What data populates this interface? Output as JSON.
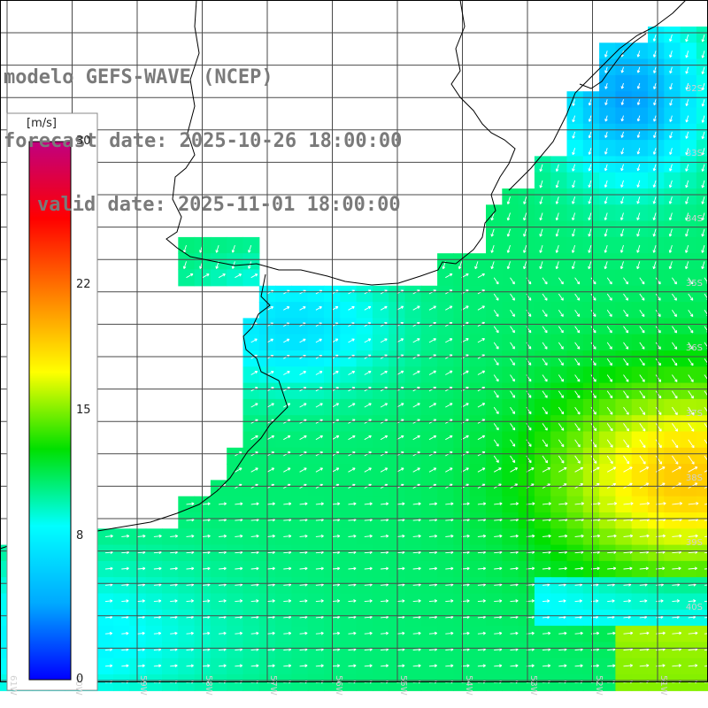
{
  "title": {
    "model": "modelo GEFS-WAVE (NCEP)",
    "forecast": "forecast date: 2025-10-26 18:00:00",
    "valid": "valid date: 2025-11-01 18:00:00"
  },
  "colorbar": {
    "unit": "[m/s]",
    "min": 0,
    "max": 30,
    "ticks": [
      "30",
      "22",
      "15",
      "8",
      "0"
    ],
    "tick_values": [
      30,
      22,
      15,
      8,
      0
    ],
    "colors": [
      "#0000ff",
      "#00aaff",
      "#00ffff",
      "#00e000",
      "#ffff00",
      "#ff8000",
      "#ff0000",
      "#c00080"
    ]
  },
  "map": {
    "variable": "wind speed and direction",
    "lat_labels": [
      "32S",
      "33S",
      "34S",
      "35S",
      "36S",
      "37S",
      "38S",
      "39S",
      "40S"
    ],
    "lon_labels": [
      "61W",
      "60W",
      "59W",
      "58W",
      "57W",
      "56W",
      "55W",
      "54W",
      "53W",
      "52W",
      "51W"
    ],
    "land_color": "#ffffff",
    "grid_color": "#4a4a4a",
    "coast_color": "#000000",
    "arrow_color": "#ffffff",
    "field_extent": {
      "lon": [
        -61.5,
        -50.5
      ],
      "lat": [
        -31.0,
        -41.5
      ]
    }
  }
}
